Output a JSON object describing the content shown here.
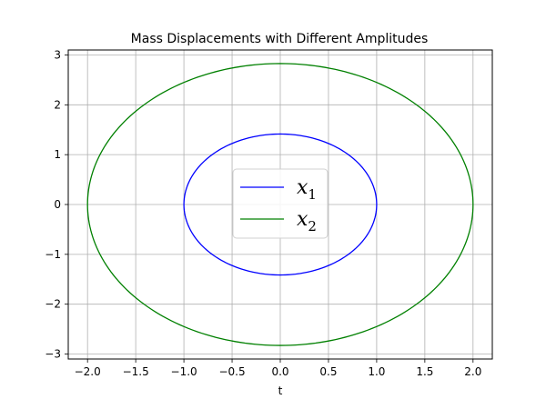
{
  "chart_data": {
    "type": "line",
    "title": "Mass Displacements with Different Amplitudes",
    "xlabel": "t",
    "ylabel": "",
    "xlim": [
      -2.2,
      2.2
    ],
    "ylim": [
      -3.1,
      3.1
    ],
    "xticks": [
      -2.0,
      -1.5,
      -1.0,
      -0.5,
      0.0,
      0.5,
      1.0,
      1.5,
      2.0
    ],
    "xtick_labels": [
      "−2.0",
      "−1.5",
      "−1.0",
      "−0.5",
      "0.0",
      "0.5",
      "1.0",
      "1.5",
      "2.0"
    ],
    "yticks": [
      -3,
      -2,
      -1,
      0,
      1,
      2,
      3
    ],
    "ytick_labels": [
      "−3",
      "−2",
      "−1",
      "0",
      "1",
      "2",
      "3"
    ],
    "grid": true,
    "legend_position": "center",
    "series": [
      {
        "name": "x",
        "subscript": "1",
        "color": "#0000ff",
        "x_amplitude": 1.0,
        "y_amplitude": 1.414
      },
      {
        "name": "x",
        "subscript": "2",
        "color": "#008000",
        "x_amplitude": 2.0,
        "y_amplitude": 2.828
      }
    ]
  }
}
